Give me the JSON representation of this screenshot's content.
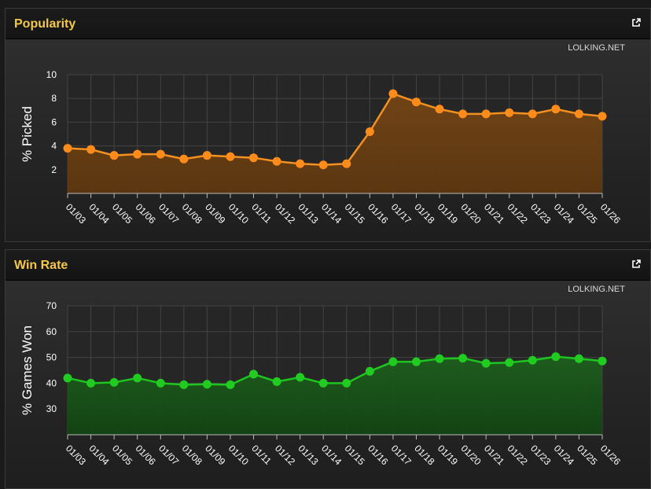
{
  "panels": [
    {
      "title": "Popularity",
      "credit": "LOLKING.NET"
    },
    {
      "title": "Win Rate",
      "credit": "LOLKING.NET"
    }
  ],
  "chart_data": [
    {
      "type": "area",
      "title": "Popularity",
      "ylabel": "% Picked",
      "xlabel": "",
      "ylim": [
        0,
        10
      ],
      "yticks": [
        2,
        4,
        6,
        8,
        10
      ],
      "categories": [
        "01/03",
        "01/04",
        "01/05",
        "01/06",
        "01/07",
        "01/08",
        "01/09",
        "01/10",
        "01/11",
        "01/12",
        "01/13",
        "01/14",
        "01/15",
        "01/16",
        "01/17",
        "01/18",
        "01/19",
        "01/20",
        "01/21",
        "01/22",
        "01/23",
        "01/24",
        "01/25",
        "01/26"
      ],
      "series": [
        {
          "values": [
            3.8,
            3.7,
            3.2,
            3.3,
            3.3,
            2.9,
            3.2,
            3.1,
            3.0,
            2.7,
            2.5,
            2.4,
            2.5,
            5.2,
            8.4,
            7.7,
            7.1,
            6.7,
            6.7,
            6.8,
            6.7,
            7.1,
            6.7,
            6.5
          ]
        }
      ],
      "grid": true,
      "colors": {
        "line": "#f39120",
        "marker": "#ff8c1a",
        "fill_top": "#744515",
        "fill_bottom": "#5d370f"
      }
    },
    {
      "type": "area",
      "title": "Win Rate",
      "ylabel": "% Games Won",
      "xlabel": "",
      "ylim": [
        20,
        70
      ],
      "yticks": [
        30,
        40,
        50,
        60,
        70
      ],
      "categories": [
        "01/03",
        "01/04",
        "01/05",
        "01/06",
        "01/07",
        "01/08",
        "01/09",
        "01/10",
        "01/11",
        "01/12",
        "01/13",
        "01/14",
        "01/15",
        "01/16",
        "01/17",
        "01/18",
        "01/19",
        "01/20",
        "01/21",
        "01/22",
        "01/23",
        "01/24",
        "01/25",
        "01/26"
      ],
      "series": [
        {
          "values": [
            42.0,
            40.0,
            40.3,
            42.0,
            40.0,
            39.4,
            39.6,
            39.4,
            43.5,
            40.6,
            42.3,
            40.0,
            40.0,
            44.6,
            48.3,
            48.3,
            49.5,
            49.7,
            47.7,
            48.0,
            48.9,
            50.3,
            49.5,
            48.6
          ]
        }
      ],
      "grid": true,
      "colors": {
        "line": "#1fc51f",
        "marker": "#20cc20",
        "fill_top": "#1e5f1e",
        "fill_bottom": "#124412"
      }
    }
  ]
}
